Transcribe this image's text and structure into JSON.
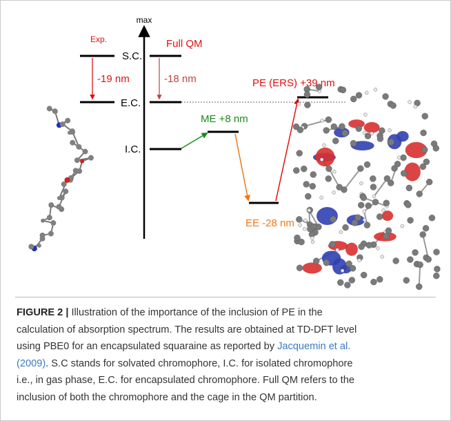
{
  "figure": {
    "axis_label": "max",
    "exp_label": "Exp.",
    "full_qm_label": "Full QM",
    "levels": {
      "sc": "S.C.",
      "ec": "E.C.",
      "ic": "I.C."
    },
    "shifts": {
      "exp": "-19 nm",
      "full_qm": "-18 nm",
      "me": "ME +8 nm",
      "ee": "EE -28 nm",
      "pe": "PE (ERS) +39 nm"
    }
  },
  "caption": {
    "label": "FIGURE 2 |",
    "lines": [
      [
        {
          "text": " Illustration of the importance of the inclusion of PE in the"
        }
      ],
      [
        {
          "text": "calculation of absorption spectrum. The results are obtained at TD-DFT level"
        }
      ],
      [
        {
          "text": "using PBE0 for an encapsulated squaraine as reported by "
        },
        {
          "text": "Jacquemin et al.",
          "link": true
        }
      ],
      [
        {
          "text": "(2009)",
          "link": true
        },
        {
          "text": ". S.C stands for solvated chromophore, I.C. for isolated chromophore"
        }
      ],
      [
        {
          "text": "i.e., in gas phase, E.C. for encapsulated chromophore. Full QM refers to the"
        }
      ],
      [
        {
          "text": "inclusion of both the chromophore and the cage in the QM partition."
        }
      ]
    ]
  }
}
